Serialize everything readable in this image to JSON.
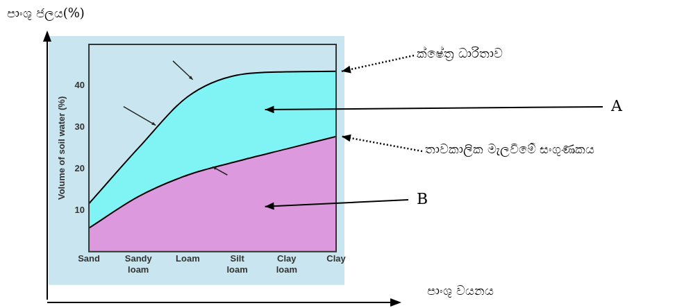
{
  "chart_data": {
    "type": "area",
    "ylabel": "Volume of soil water (%)",
    "categories": [
      "Sand",
      "Sandy loam",
      "Loam",
      "Silt loam",
      "Clay loam",
      "Clay"
    ],
    "series": [
      {
        "color": "#dd99dd",
        "values": [
          5.7,
          13.3,
          18.5,
          21.8,
          24.8,
          27.8
        ]
      },
      {
        "color": "#80f4f4",
        "values": [
          11.6,
          25,
          37.4,
          42.6,
          43.4,
          43.5
        ]
      }
    ],
    "ylim": [
      0,
      50
    ],
    "yticks": [
      10,
      20,
      30,
      40
    ],
    "annotations": [
      "පාංශු ජලය(%)",
      "පාංශු වයනය",
      "ක්ෂේත්‍ර ධාරිතාව",
      "A",
      "තාවකාලික මැලවීමේ සංගුණකය",
      "B"
    ]
  }
}
